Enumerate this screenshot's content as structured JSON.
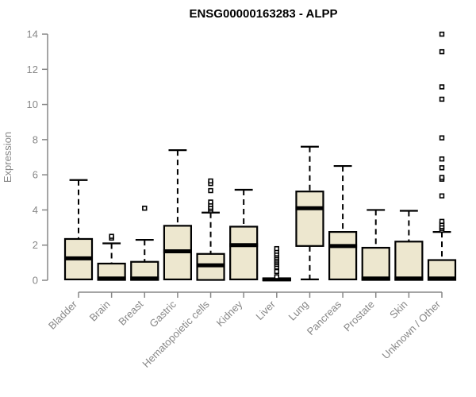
{
  "page": {
    "background": "#ffffff"
  },
  "chart_data": {
    "type": "boxplot",
    "title": "ENSG00000163283 - ALPP",
    "ylabel": "Expression",
    "xlabel": "",
    "ylim": [
      0,
      14
    ],
    "yticks": [
      0,
      2,
      4,
      6,
      8,
      10,
      12,
      14
    ],
    "grid": false,
    "legend": null,
    "colors": {
      "box_fill": "#EDE7CF",
      "box_border": "#000000",
      "median": "#000000",
      "whisker": "#000000",
      "axis": "#878787",
      "axis_text": "#878787",
      "title": "#000000",
      "outlier_fill": "#ffffff"
    },
    "categories": [
      "Bladder",
      "Brain",
      "Breast",
      "Gastric",
      "Hematopoietic cells",
      "Kidney",
      "Liver",
      "Lung",
      "Pancreas",
      "Prostate",
      "Skin",
      "Unknown / Other"
    ],
    "series": [
      {
        "category": "Bladder",
        "q1": 0.05,
        "median": 1.25,
        "q3": 2.35,
        "whisker_low": 0.05,
        "whisker_high": 5.7,
        "outliers": []
      },
      {
        "category": "Brain",
        "q1": 0.02,
        "median": 0.1,
        "q3": 0.95,
        "whisker_low": 0.02,
        "whisker_high": 2.1,
        "outliers": [
          2.4,
          2.5
        ]
      },
      {
        "category": "Breast",
        "q1": 0.02,
        "median": 0.1,
        "q3": 1.05,
        "whisker_low": 0.02,
        "whisker_high": 2.3,
        "outliers": [
          4.1
        ]
      },
      {
        "category": "Gastric",
        "q1": 0.05,
        "median": 1.65,
        "q3": 3.1,
        "whisker_low": 0.05,
        "whisker_high": 7.4,
        "outliers": []
      },
      {
        "category": "Hematopoietic cells",
        "q1": 0.02,
        "median": 0.85,
        "q3": 1.5,
        "whisker_low": 0.02,
        "whisker_high": 3.85,
        "outliers": [
          3.95,
          4.05,
          4.15,
          4.3,
          4.45,
          5.1,
          5.5,
          5.65
        ]
      },
      {
        "category": "Kidney",
        "q1": 0.05,
        "median": 2.0,
        "q3": 3.05,
        "whisker_low": 0.05,
        "whisker_high": 5.15,
        "outliers": []
      },
      {
        "category": "Liver",
        "q1": 0.0,
        "median": 0.05,
        "q3": 0.1,
        "whisker_low": 0.0,
        "whisker_high": 0.1,
        "outliers": [
          0.2,
          0.5,
          0.75,
          0.9,
          1.0,
          1.1,
          1.2,
          1.3,
          1.4,
          1.5,
          1.65,
          1.8
        ]
      },
      {
        "category": "Lung",
        "q1": 1.95,
        "median": 4.1,
        "q3": 5.05,
        "whisker_low": 0.05,
        "whisker_high": 7.6,
        "outliers": []
      },
      {
        "category": "Pancreas",
        "q1": 0.05,
        "median": 1.95,
        "q3": 2.75,
        "whisker_low": 0.05,
        "whisker_high": 6.5,
        "outliers": []
      },
      {
        "category": "Prostate",
        "q1": 0.02,
        "median": 0.1,
        "q3": 1.85,
        "whisker_low": 0.02,
        "whisker_high": 4.0,
        "outliers": []
      },
      {
        "category": "Skin",
        "q1": 0.02,
        "median": 0.1,
        "q3": 2.2,
        "whisker_low": 0.02,
        "whisker_high": 3.95,
        "outliers": []
      },
      {
        "category": "Unknown / Other",
        "q1": 0.02,
        "median": 0.1,
        "q3": 1.15,
        "whisker_low": 0.02,
        "whisker_high": 2.75,
        "outliers": [
          2.85,
          2.95,
          3.05,
          3.2,
          3.35,
          4.8,
          5.75,
          5.85,
          6.4,
          6.9,
          8.1,
          10.3,
          11.0,
          13.0,
          14.0
        ]
      }
    ]
  }
}
